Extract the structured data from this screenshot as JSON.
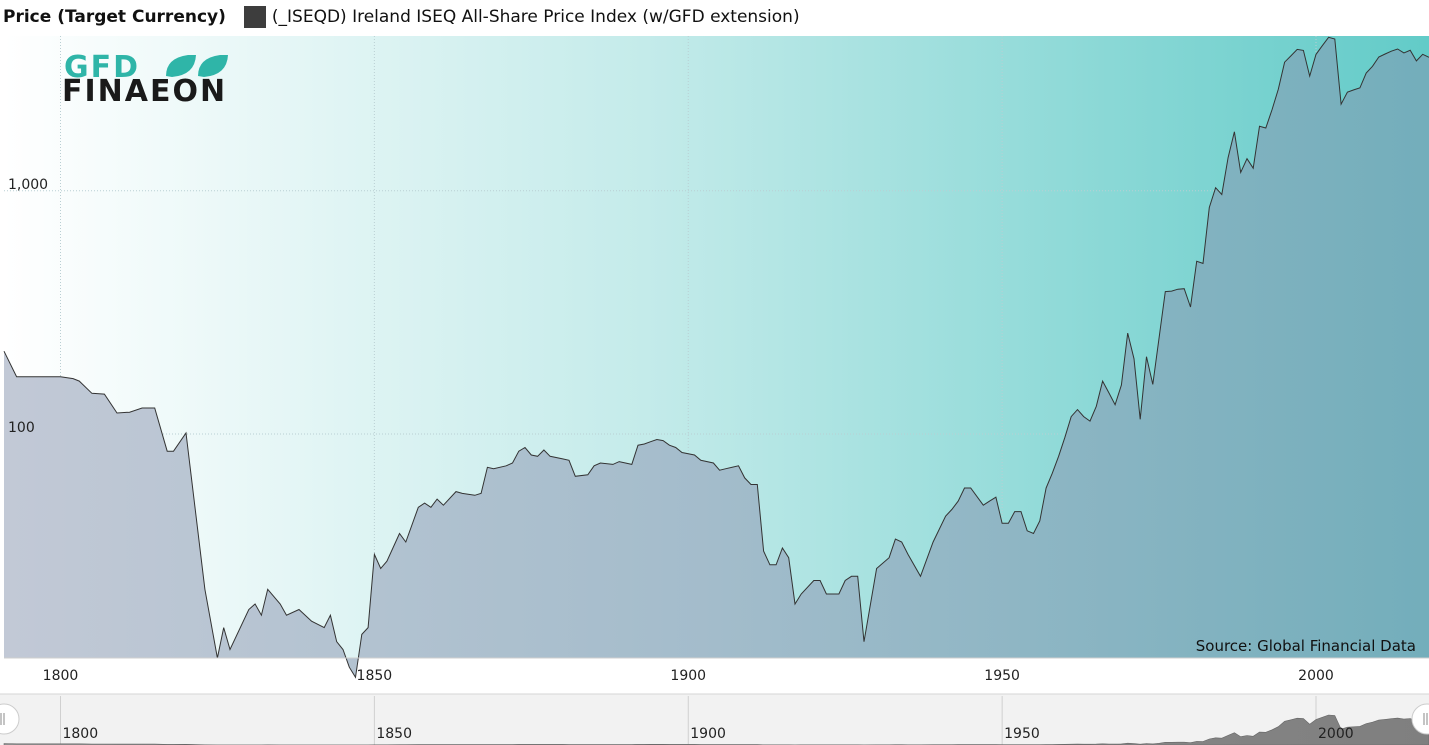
{
  "legend": {
    "y_label": "Price (Target Currency)",
    "series_label": "(_ISEQD) Ireland ISEQ All-Share Price Index (w/GFD extension)",
    "series_color": "#3d3d3d"
  },
  "logo": {
    "line1": "GFD",
    "line2": "FINAEON"
  },
  "source": "Source: Global Financial Data",
  "navigator": {
    "labels": [
      "1800",
      "1850",
      "1900",
      "1950",
      "2000"
    ]
  },
  "colors": {
    "bg_left": "#ffffff",
    "bg_right": "#62cbc8",
    "area_left": "#c2c9d6",
    "area_right": "#73aebb",
    "line": "#333333"
  },
  "chart_data": {
    "type": "area",
    "title": "",
    "xlabel": "",
    "ylabel": "Price (Target Currency)",
    "y_scale": "log",
    "xlim": [
      1791,
      2018
    ],
    "ylim": [
      12,
      4330
    ],
    "x_ticks": [
      1800,
      1850,
      1900,
      1950,
      2000
    ],
    "y_ticks": [
      {
        "value": 100,
        "label": "100"
      },
      {
        "value": 1000,
        "label": "1,000"
      }
    ],
    "grid": true,
    "series": [
      {
        "name": "(_ISEQD) Ireland ISEQ All-Share Price Index (w/GFD extension)",
        "points": [
          [
            1791,
            219
          ],
          [
            1793,
            172
          ],
          [
            1800,
            172
          ],
          [
            1802,
            169
          ],
          [
            1803,
            165
          ],
          [
            1805,
            147
          ],
          [
            1807,
            146
          ],
          [
            1809,
            122
          ],
          [
            1811,
            123
          ],
          [
            1813,
            128
          ],
          [
            1815,
            128
          ],
          [
            1817,
            85
          ],
          [
            1818,
            85
          ],
          [
            1820,
            101
          ],
          [
            1823,
            23
          ],
          [
            1825,
            12
          ],
          [
            1826,
            16
          ],
          [
            1827,
            13
          ],
          [
            1830,
            19
          ],
          [
            1831,
            20
          ],
          [
            1832,
            18
          ],
          [
            1833,
            23
          ],
          [
            1835,
            20
          ],
          [
            1836,
            18
          ],
          [
            1838,
            19
          ],
          [
            1840,
            17
          ],
          [
            1842,
            16
          ],
          [
            1843,
            18
          ],
          [
            1844,
            14
          ],
          [
            1845,
            13
          ],
          [
            1846,
            11
          ],
          [
            1847,
            10
          ],
          [
            1848,
            15
          ],
          [
            1849,
            16
          ],
          [
            1850,
            32
          ],
          [
            1851,
            28
          ],
          [
            1852,
            30
          ],
          [
            1854,
            39
          ],
          [
            1855,
            36
          ],
          [
            1857,
            50
          ],
          [
            1858,
            52
          ],
          [
            1859,
            50
          ],
          [
            1860,
            54
          ],
          [
            1861,
            51
          ],
          [
            1863,
            58
          ],
          [
            1864,
            57
          ],
          [
            1866,
            56
          ],
          [
            1867,
            57
          ],
          [
            1868,
            73
          ],
          [
            1869,
            72
          ],
          [
            1871,
            74
          ],
          [
            1872,
            76
          ],
          [
            1873,
            85
          ],
          [
            1874,
            88
          ],
          [
            1875,
            82
          ],
          [
            1876,
            81
          ],
          [
            1877,
            86
          ],
          [
            1878,
            81
          ],
          [
            1880,
            79
          ],
          [
            1881,
            78
          ],
          [
            1882,
            67
          ],
          [
            1884,
            68
          ],
          [
            1885,
            74
          ],
          [
            1886,
            76
          ],
          [
            1888,
            75
          ],
          [
            1889,
            77
          ],
          [
            1891,
            75
          ],
          [
            1892,
            90
          ],
          [
            1893,
            91
          ],
          [
            1894,
            93
          ],
          [
            1895,
            95
          ],
          [
            1896,
            94
          ],
          [
            1897,
            90
          ],
          [
            1898,
            88
          ],
          [
            1899,
            84
          ],
          [
            1901,
            82
          ],
          [
            1902,
            78
          ],
          [
            1904,
            76
          ],
          [
            1905,
            71
          ],
          [
            1906,
            72
          ],
          [
            1907,
            73
          ],
          [
            1908,
            74
          ],
          [
            1909,
            66
          ],
          [
            1910,
            62
          ],
          [
            1911,
            62
          ],
          [
            1912,
            33
          ],
          [
            1913,
            29
          ],
          [
            1914,
            29
          ],
          [
            1915,
            34
          ],
          [
            1916,
            31
          ],
          [
            1917,
            20
          ],
          [
            1918,
            22
          ],
          [
            1920,
            25
          ],
          [
            1921,
            25
          ],
          [
            1922,
            22
          ],
          [
            1923,
            22
          ],
          [
            1924,
            22
          ],
          [
            1925,
            25
          ],
          [
            1926,
            26
          ],
          [
            1927,
            26
          ],
          [
            1928,
            14
          ],
          [
            1930,
            28
          ],
          [
            1932,
            31
          ],
          [
            1933,
            37
          ],
          [
            1934,
            36
          ],
          [
            1935,
            32
          ],
          [
            1937,
            26
          ],
          [
            1939,
            36
          ],
          [
            1941,
            46
          ],
          [
            1942,
            49
          ],
          [
            1943,
            53
          ],
          [
            1944,
            60
          ],
          [
            1945,
            60
          ],
          [
            1947,
            51
          ],
          [
            1948,
            53
          ],
          [
            1949,
            55
          ],
          [
            1950,
            43
          ],
          [
            1951,
            43
          ],
          [
            1952,
            48
          ],
          [
            1953,
            48
          ],
          [
            1954,
            40
          ],
          [
            1955,
            39
          ],
          [
            1956,
            44
          ],
          [
            1957,
            60
          ],
          [
            1958,
            69
          ],
          [
            1959,
            81
          ],
          [
            1960,
            97
          ],
          [
            1961,
            118
          ],
          [
            1962,
            126
          ],
          [
            1963,
            118
          ],
          [
            1964,
            113
          ],
          [
            1965,
            130
          ],
          [
            1966,
            165
          ],
          [
            1967,
            148
          ],
          [
            1968,
            132
          ],
          [
            1969,
            159
          ],
          [
            1970,
            260
          ],
          [
            1971,
            204
          ],
          [
            1972,
            115
          ],
          [
            1973,
            208
          ],
          [
            1974,
            160
          ],
          [
            1975,
            249
          ],
          [
            1976,
            385
          ],
          [
            1977,
            387
          ],
          [
            1978,
            394
          ],
          [
            1979,
            396
          ],
          [
            1980,
            333
          ],
          [
            1981,
            513
          ],
          [
            1982,
            503
          ],
          [
            1983,
            854
          ],
          [
            1984,
            1030
          ],
          [
            1985,
            966
          ],
          [
            1986,
            1370
          ],
          [
            1987,
            1748
          ],
          [
            1988,
            1190
          ],
          [
            1989,
            1355
          ],
          [
            1990,
            1239
          ],
          [
            1991,
            1842
          ],
          [
            1992,
            1812
          ],
          [
            1993,
            2160
          ],
          [
            1994,
            2614
          ],
          [
            1995,
            3380
          ],
          [
            1996,
            3587
          ],
          [
            1997,
            3813
          ],
          [
            1998,
            3778
          ],
          [
            1999,
            2961
          ],
          [
            2000,
            3638
          ],
          [
            2001,
            3950
          ],
          [
            2002,
            4277
          ],
          [
            2003,
            4210
          ],
          [
            2004,
            2270
          ],
          [
            2005,
            2543
          ],
          [
            2006,
            2599
          ],
          [
            2007,
            2648
          ],
          [
            2008,
            3050
          ],
          [
            2009,
            3250
          ],
          [
            2010,
            3550
          ],
          [
            2011,
            3650
          ],
          [
            2012,
            3750
          ],
          [
            2013,
            3830
          ],
          [
            2014,
            3690
          ],
          [
            2015,
            3780
          ],
          [
            2016,
            3420
          ],
          [
            2017,
            3640
          ],
          [
            2018,
            3540
          ]
        ]
      }
    ]
  }
}
